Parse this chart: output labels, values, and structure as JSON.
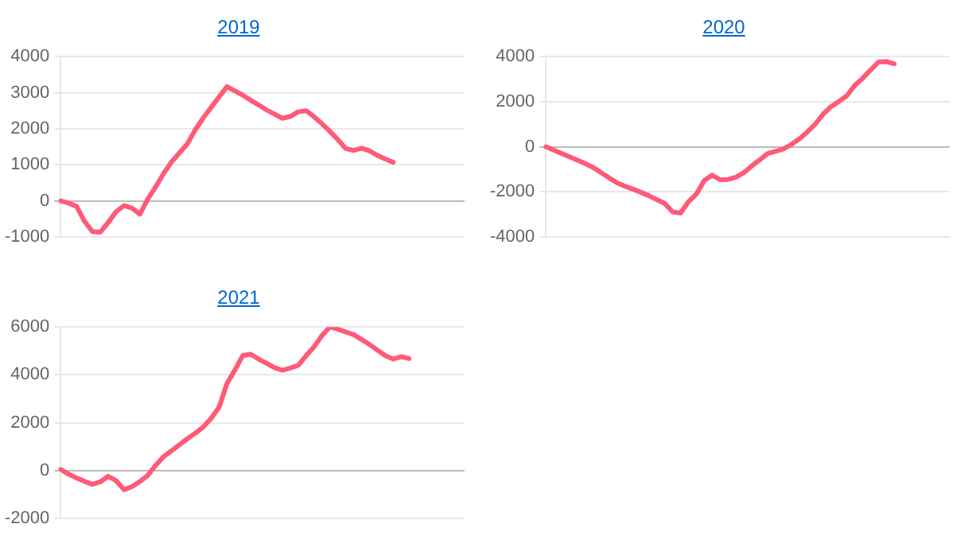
{
  "chart_data": [
    {
      "type": "line",
      "title": "2019",
      "categories": [
        null,
        null,
        null,
        null,
        null,
        null,
        null,
        null,
        null,
        null,
        null,
        null,
        null,
        null,
        null,
        null,
        null,
        null,
        null,
        null,
        null,
        null,
        null,
        null,
        null,
        null,
        null,
        null,
        null,
        null,
        null,
        null,
        null,
        null,
        null,
        null,
        null,
        null,
        null,
        null,
        null,
        null,
        null,
        null,
        null,
        null,
        null,
        null,
        null,
        null,
        null,
        null
      ],
      "series": [
        {
          "color": "#ff5a78",
          "values": [
            0,
            -60,
            -150,
            -560,
            -850,
            -870,
            -600,
            -300,
            -130,
            -200,
            -370,
            50,
            390,
            760,
            1080,
            1330,
            1580,
            1970,
            2300,
            2590,
            2880,
            3170,
            3050,
            2930,
            2790,
            2660,
            2520,
            2410,
            2290,
            2340,
            2470,
            2500,
            2330,
            2140,
            1930,
            1700,
            1450,
            1400,
            1460,
            1390,
            1260,
            1160,
            1070,
            null,
            null,
            null,
            null,
            null,
            null,
            null,
            null,
            null
          ]
        }
      ],
      "ylim": [
        -1000,
        4000
      ],
      "yticks": [
        -1000,
        0,
        1000,
        2000,
        3000,
        4000
      ],
      "grid": "y",
      "tick_labels": "y",
      "marker": "none",
      "line_style": "solid"
    },
    {
      "type": "line",
      "title": "2020",
      "categories": [
        null,
        null,
        null,
        null,
        null,
        null,
        null,
        null,
        null,
        null,
        null,
        null,
        null,
        null,
        null,
        null,
        null,
        null,
        null,
        null,
        null,
        null,
        null,
        null,
        null,
        null,
        null,
        null,
        null,
        null,
        null,
        null,
        null,
        null,
        null,
        null,
        null,
        null,
        null,
        null,
        null,
        null,
        null,
        null,
        null,
        null,
        null,
        null,
        null,
        null,
        null,
        null
      ],
      "series": [
        {
          "color": "#ff5a78",
          "values": [
            0,
            -150,
            -300,
            -450,
            -600,
            -750,
            -920,
            -1150,
            -1380,
            -1600,
            -1750,
            -1880,
            -2020,
            -2170,
            -2340,
            -2510,
            -2890,
            -2940,
            -2440,
            -2100,
            -1500,
            -1260,
            -1460,
            -1450,
            -1350,
            -1150,
            -850,
            -580,
            -300,
            -200,
            -100,
            100,
            350,
            650,
            1000,
            1440,
            1780,
            2010,
            2260,
            2720,
            3040,
            3400,
            3760,
            3780,
            3680,
            null,
            null,
            null,
            null,
            null,
            null,
            null
          ]
        }
      ],
      "ylim": [
        -4000,
        4000
      ],
      "yticks": [
        -4000,
        -2000,
        0,
        2000,
        4000
      ],
      "grid": "y",
      "tick_labels": "y",
      "marker": "none",
      "line_style": "solid"
    },
    {
      "type": "line",
      "title": "2021",
      "categories": [
        null,
        null,
        null,
        null,
        null,
        null,
        null,
        null,
        null,
        null,
        null,
        null,
        null,
        null,
        null,
        null,
        null,
        null,
        null,
        null,
        null,
        null,
        null,
        null,
        null,
        null,
        null,
        null,
        null,
        null,
        null,
        null,
        null,
        null,
        null,
        null,
        null,
        null,
        null,
        null,
        null,
        null,
        null,
        null,
        null,
        null,
        null,
        null,
        null,
        null,
        null,
        null
      ],
      "series": [
        {
          "color": "#ff5a78",
          "values": [
            50,
            -150,
            -310,
            -450,
            -580,
            -470,
            -240,
            -420,
            -800,
            -670,
            -460,
            -200,
            220,
            580,
            830,
            1080,
            1330,
            1560,
            1820,
            2180,
            2640,
            3640,
            4200,
            4810,
            4860,
            4660,
            4480,
            4300,
            4190,
            4280,
            4400,
            4800,
            5170,
            5640,
            6000,
            5910,
            5790,
            5680,
            5480,
            5270,
            5030,
            4800,
            4660,
            4760,
            4680,
            null,
            null,
            null,
            null,
            null,
            null,
            null
          ]
        }
      ],
      "ylim": [
        -2000,
        6000
      ],
      "yticks": [
        -2000,
        0,
        2000,
        4000,
        6000
      ],
      "grid": "y",
      "tick_labels": "y",
      "marker": "none",
      "line_style": "solid"
    }
  ]
}
